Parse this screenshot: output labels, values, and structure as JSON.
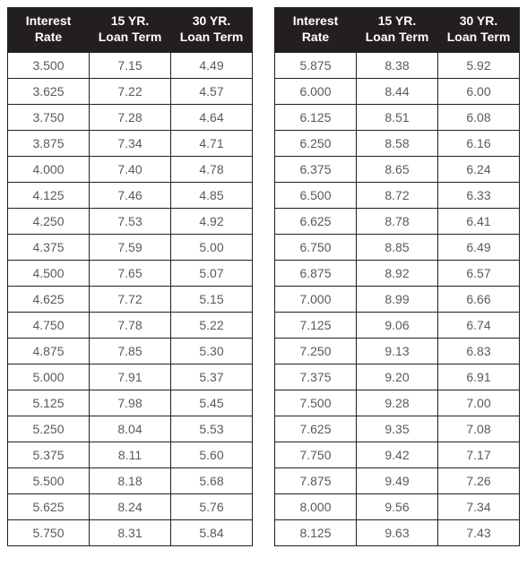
{
  "headers": {
    "rate_line1": "Interest",
    "rate_line2": "Rate",
    "y15_line1": "15 YR.",
    "y15_line2": "Loan Term",
    "y30_line1": "30 YR.",
    "y30_line2": "Loan Term"
  },
  "left_rows": [
    {
      "rate": "3.500",
      "y15": "7.15",
      "y30": "4.49"
    },
    {
      "rate": "3.625",
      "y15": "7.22",
      "y30": "4.57"
    },
    {
      "rate": "3.750",
      "y15": "7.28",
      "y30": "4.64"
    },
    {
      "rate": "3.875",
      "y15": "7.34",
      "y30": "4.71"
    },
    {
      "rate": "4.000",
      "y15": "7.40",
      "y30": "4.78"
    },
    {
      "rate": "4.125",
      "y15": "7.46",
      "y30": "4.85"
    },
    {
      "rate": "4.250",
      "y15": "7.53",
      "y30": "4.92"
    },
    {
      "rate": "4.375",
      "y15": "7.59",
      "y30": "5.00"
    },
    {
      "rate": "4.500",
      "y15": "7.65",
      "y30": "5.07"
    },
    {
      "rate": "4.625",
      "y15": "7.72",
      "y30": "5.15"
    },
    {
      "rate": "4.750",
      "y15": "7.78",
      "y30": "5.22"
    },
    {
      "rate": "4.875",
      "y15": "7.85",
      "y30": "5.30"
    },
    {
      "rate": "5.000",
      "y15": "7.91",
      "y30": "5.37"
    },
    {
      "rate": "5.125",
      "y15": "7.98",
      "y30": "5.45"
    },
    {
      "rate": "5.250",
      "y15": "8.04",
      "y30": "5.53"
    },
    {
      "rate": "5.375",
      "y15": "8.11",
      "y30": "5.60"
    },
    {
      "rate": "5.500",
      "y15": "8.18",
      "y30": "5.68"
    },
    {
      "rate": "5.625",
      "y15": "8.24",
      "y30": "5.76"
    },
    {
      "rate": "5.750",
      "y15": "8.31",
      "y30": "5.84"
    }
  ],
  "right_rows": [
    {
      "rate": "5.875",
      "y15": "8.38",
      "y30": "5.92"
    },
    {
      "rate": "6.000",
      "y15": "8.44",
      "y30": "6.00"
    },
    {
      "rate": "6.125",
      "y15": "8.51",
      "y30": "6.08"
    },
    {
      "rate": "6.250",
      "y15": "8.58",
      "y30": "6.16"
    },
    {
      "rate": "6.375",
      "y15": "8.65",
      "y30": "6.24"
    },
    {
      "rate": "6.500",
      "y15": "8.72",
      "y30": "6.33"
    },
    {
      "rate": "6.625",
      "y15": "8.78",
      "y30": "6.41"
    },
    {
      "rate": "6.750",
      "y15": "8.85",
      "y30": "6.49"
    },
    {
      "rate": "6.875",
      "y15": "8.92",
      "y30": "6.57"
    },
    {
      "rate": "7.000",
      "y15": "8.99",
      "y30": "6.66"
    },
    {
      "rate": "7.125",
      "y15": "9.06",
      "y30": "6.74"
    },
    {
      "rate": "7.250",
      "y15": "9.13",
      "y30": "6.83"
    },
    {
      "rate": "7.375",
      "y15": "9.20",
      "y30": "6.91"
    },
    {
      "rate": "7.500",
      "y15": "9.28",
      "y30": "7.00"
    },
    {
      "rate": "7.625",
      "y15": "9.35",
      "y30": "7.08"
    },
    {
      "rate": "7.750",
      "y15": "9.42",
      "y30": "7.17"
    },
    {
      "rate": "7.875",
      "y15": "9.49",
      "y30": "7.26"
    },
    {
      "rate": "8.000",
      "y15": "9.56",
      "y30": "7.34"
    },
    {
      "rate": "8.125",
      "y15": "9.63",
      "y30": "7.43"
    }
  ]
}
